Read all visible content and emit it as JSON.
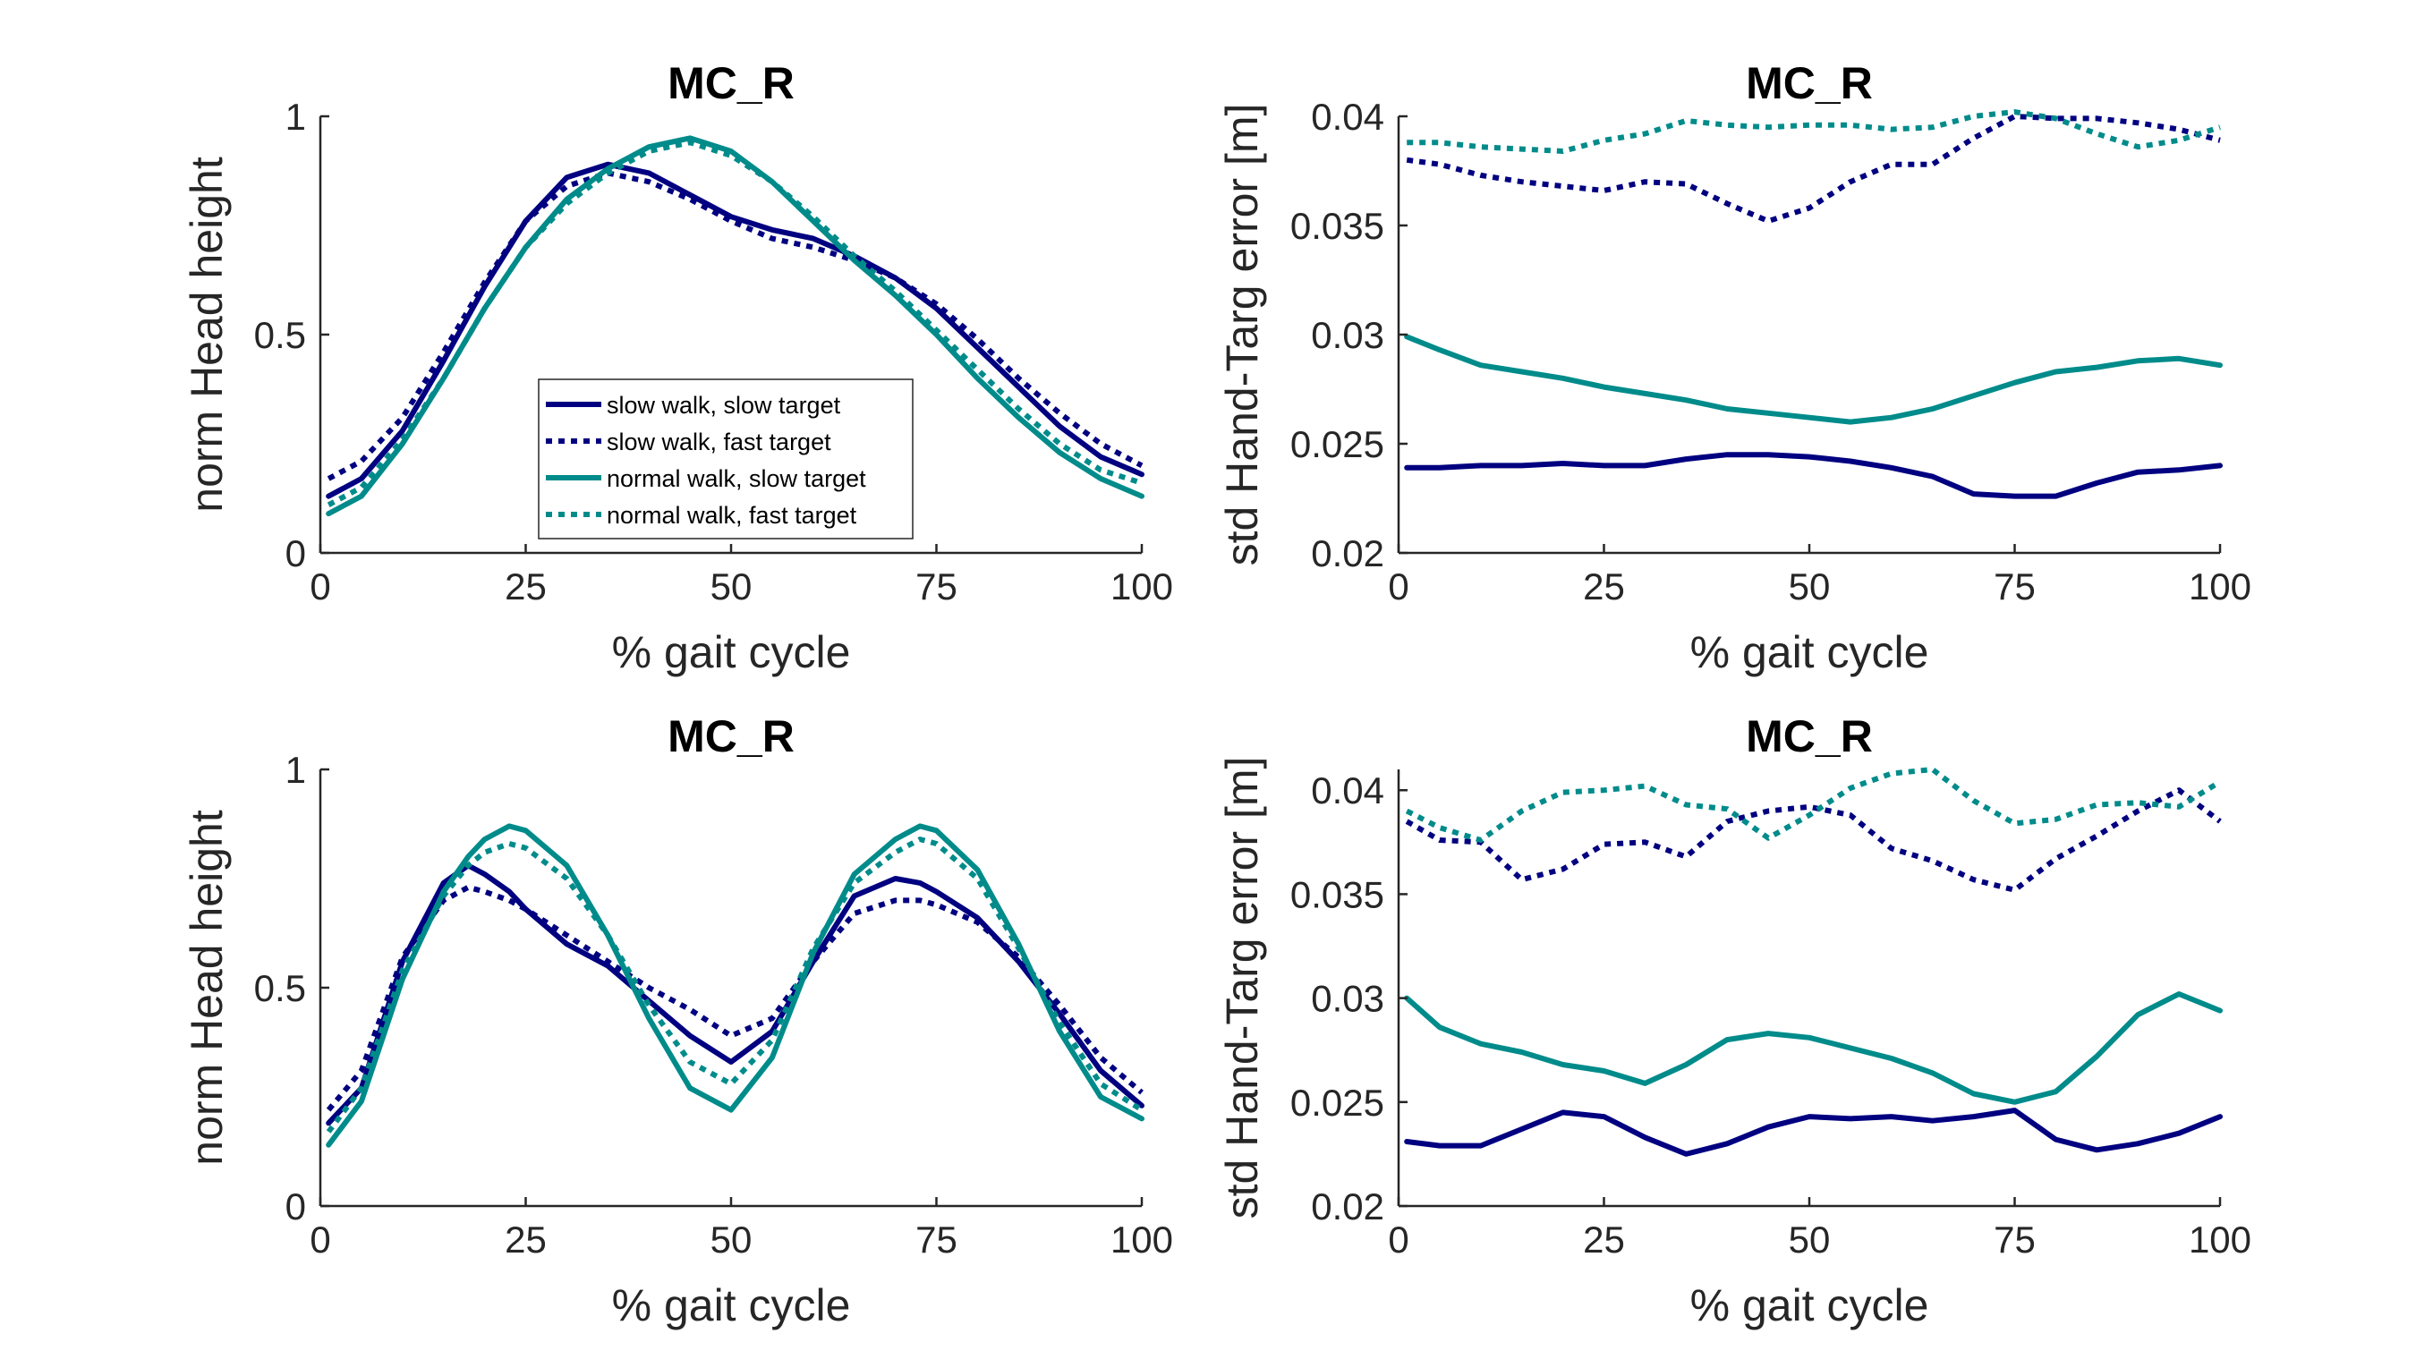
{
  "colors": {
    "slow": "#000080",
    "normal": "#008B8B"
  },
  "chart_data": [
    {
      "type": "line",
      "title": "MC_R",
      "xlabel": "% gait cycle",
      "ylabel": "norm Head height",
      "xlim": [
        0,
        100
      ],
      "ylim": [
        0,
        1
      ],
      "xticks": [
        0,
        25,
        50,
        75,
        100
      ],
      "xtick_labels": [
        "0",
        "25",
        "50",
        "75",
        "100"
      ],
      "yticks": [
        0,
        0.5,
        1
      ],
      "ytick_labels": [
        "0",
        "0.5",
        "1"
      ],
      "legend": {
        "placement": "lower-center",
        "entries": [
          "slow walk, slow target",
          "slow walk, fast target",
          "normal walk, slow target",
          "normal walk, fast target"
        ]
      },
      "x": [
        1,
        5,
        10,
        15,
        20,
        25,
        30,
        35,
        40,
        45,
        50,
        55,
        60,
        65,
        70,
        75,
        80,
        85,
        90,
        95,
        100
      ],
      "series": [
        {
          "name": "slow walk, slow target",
          "color": "slow",
          "dash": "solid",
          "values": [
            0.13,
            0.17,
            0.28,
            0.44,
            0.61,
            0.76,
            0.86,
            0.89,
            0.87,
            0.82,
            0.77,
            0.74,
            0.72,
            0.68,
            0.63,
            0.56,
            0.47,
            0.38,
            0.29,
            0.22,
            0.18
          ]
        },
        {
          "name": "slow walk, fast target",
          "color": "slow",
          "dash": "dot",
          "values": [
            0.17,
            0.21,
            0.31,
            0.46,
            0.62,
            0.76,
            0.84,
            0.87,
            0.85,
            0.81,
            0.76,
            0.72,
            0.7,
            0.67,
            0.63,
            0.57,
            0.49,
            0.4,
            0.32,
            0.25,
            0.2
          ]
        },
        {
          "name": "normal walk, slow target",
          "color": "normal",
          "dash": "solid",
          "values": [
            0.09,
            0.13,
            0.25,
            0.4,
            0.56,
            0.7,
            0.81,
            0.88,
            0.93,
            0.95,
            0.92,
            0.85,
            0.76,
            0.67,
            0.59,
            0.5,
            0.4,
            0.31,
            0.23,
            0.17,
            0.13
          ]
        },
        {
          "name": "normal walk, fast target",
          "color": "normal",
          "dash": "dot",
          "values": [
            0.11,
            0.15,
            0.26,
            0.4,
            0.56,
            0.7,
            0.8,
            0.87,
            0.92,
            0.94,
            0.91,
            0.85,
            0.77,
            0.68,
            0.6,
            0.51,
            0.42,
            0.33,
            0.25,
            0.19,
            0.16
          ]
        }
      ]
    },
    {
      "type": "line",
      "title": "MC_R",
      "xlabel": "% gait cycle",
      "ylabel": "std Hand-Targ error [m]",
      "xlim": [
        0,
        100
      ],
      "ylim": [
        0.02,
        0.04
      ],
      "xticks": [
        0,
        25,
        50,
        75,
        100
      ],
      "xtick_labels": [
        "0",
        "25",
        "50",
        "75",
        "100"
      ],
      "yticks": [
        0.02,
        0.025,
        0.03,
        0.035,
        0.04
      ],
      "ytick_labels": [
        "0.02",
        "0.025",
        "0.03",
        "0.035",
        "0.04"
      ],
      "x": [
        1,
        5,
        10,
        15,
        20,
        25,
        30,
        35,
        40,
        45,
        50,
        55,
        60,
        65,
        70,
        75,
        80,
        85,
        90,
        95,
        100
      ],
      "series": [
        {
          "name": "slow walk, slow target",
          "color": "slow",
          "dash": "solid",
          "values": [
            0.0239,
            0.0239,
            0.024,
            0.024,
            0.0241,
            0.024,
            0.024,
            0.0243,
            0.0245,
            0.0245,
            0.0244,
            0.0242,
            0.0239,
            0.0235,
            0.0227,
            0.0226,
            0.0226,
            0.0232,
            0.0237,
            0.0238,
            0.024
          ]
        },
        {
          "name": "slow walk, fast target",
          "color": "slow",
          "dash": "dot",
          "values": [
            0.038,
            0.0378,
            0.0373,
            0.037,
            0.0368,
            0.0366,
            0.037,
            0.0369,
            0.036,
            0.0352,
            0.0358,
            0.037,
            0.0378,
            0.0378,
            0.039,
            0.04,
            0.0399,
            0.0399,
            0.0397,
            0.0394,
            0.0389
          ]
        },
        {
          "name": "normal walk, slow target",
          "color": "normal",
          "dash": "solid",
          "values": [
            0.0299,
            0.0293,
            0.0286,
            0.0283,
            0.028,
            0.0276,
            0.0273,
            0.027,
            0.0266,
            0.0264,
            0.0262,
            0.026,
            0.0262,
            0.0266,
            0.0272,
            0.0278,
            0.0283,
            0.0285,
            0.0288,
            0.0289,
            0.0286
          ]
        },
        {
          "name": "normal walk, fast target",
          "color": "normal",
          "dash": "dot",
          "values": [
            0.0388,
            0.0388,
            0.0386,
            0.0385,
            0.0384,
            0.0389,
            0.0392,
            0.0398,
            0.0396,
            0.0395,
            0.0396,
            0.0396,
            0.0394,
            0.0395,
            0.04,
            0.0402,
            0.0399,
            0.0392,
            0.0386,
            0.0389,
            0.0395
          ]
        }
      ]
    },
    {
      "type": "line",
      "title": "MC_R",
      "xlabel": "% gait cycle",
      "ylabel": "norm Head height",
      "xlim": [
        0,
        100
      ],
      "ylim": [
        0,
        1
      ],
      "xticks": [
        0,
        25,
        50,
        75,
        100
      ],
      "xtick_labels": [
        "0",
        "25",
        "50",
        "75",
        "100"
      ],
      "yticks": [
        0,
        0.5,
        1
      ],
      "ytick_labels": [
        "0",
        "0.5",
        "1"
      ],
      "x": [
        1,
        5,
        10,
        15,
        18,
        20,
        23,
        25,
        30,
        35,
        40,
        45,
        50,
        55,
        60,
        65,
        70,
        73,
        75,
        80,
        85,
        90,
        95,
        100
      ],
      "series": [
        {
          "name": "slow walk, slow target",
          "color": "slow",
          "dash": "solid",
          "values": [
            0.19,
            0.27,
            0.56,
            0.74,
            0.78,
            0.76,
            0.72,
            0.68,
            0.6,
            0.55,
            0.47,
            0.39,
            0.33,
            0.4,
            0.56,
            0.71,
            0.75,
            0.74,
            0.72,
            0.66,
            0.56,
            0.44,
            0.31,
            0.23
          ]
        },
        {
          "name": "slow walk, fast target",
          "color": "slow",
          "dash": "dot",
          "values": [
            0.22,
            0.31,
            0.57,
            0.7,
            0.73,
            0.72,
            0.7,
            0.68,
            0.62,
            0.56,
            0.5,
            0.45,
            0.39,
            0.43,
            0.56,
            0.67,
            0.7,
            0.7,
            0.69,
            0.65,
            0.57,
            0.46,
            0.34,
            0.26
          ]
        },
        {
          "name": "normal walk, slow target",
          "color": "normal",
          "dash": "solid",
          "values": [
            0.14,
            0.24,
            0.52,
            0.72,
            0.8,
            0.84,
            0.87,
            0.86,
            0.78,
            0.62,
            0.43,
            0.27,
            0.22,
            0.34,
            0.58,
            0.76,
            0.84,
            0.87,
            0.86,
            0.77,
            0.6,
            0.4,
            0.25,
            0.2
          ]
        },
        {
          "name": "normal walk, fast target",
          "color": "normal",
          "dash": "dot",
          "values": [
            0.17,
            0.27,
            0.54,
            0.71,
            0.78,
            0.81,
            0.83,
            0.82,
            0.75,
            0.62,
            0.46,
            0.33,
            0.28,
            0.38,
            0.59,
            0.74,
            0.81,
            0.84,
            0.83,
            0.75,
            0.59,
            0.42,
            0.28,
            0.22
          ]
        }
      ]
    },
    {
      "type": "line",
      "title": "MC_R",
      "xlabel": "% gait cycle",
      "ylabel": "std Hand-Targ error [m]",
      "xlim": [
        0,
        100
      ],
      "ylim": [
        0.02,
        0.041
      ],
      "xticks": [
        0,
        25,
        50,
        75,
        100
      ],
      "xtick_labels": [
        "0",
        "25",
        "50",
        "75",
        "100"
      ],
      "yticks": [
        0.02,
        0.025,
        0.03,
        0.035,
        0.04
      ],
      "ytick_labels": [
        "0.02",
        "0.025",
        "0.03",
        "0.035",
        "0.04"
      ],
      "x": [
        1,
        5,
        10,
        15,
        20,
        25,
        30,
        35,
        40,
        45,
        50,
        55,
        60,
        65,
        70,
        75,
        80,
        85,
        90,
        95,
        100
      ],
      "series": [
        {
          "name": "slow walk, slow target",
          "color": "slow",
          "dash": "solid",
          "values": [
            0.0231,
            0.0229,
            0.0229,
            0.0237,
            0.0245,
            0.0243,
            0.0233,
            0.0225,
            0.023,
            0.0238,
            0.0243,
            0.0242,
            0.0243,
            0.0241,
            0.0243,
            0.0246,
            0.0232,
            0.0227,
            0.023,
            0.0235,
            0.0243
          ]
        },
        {
          "name": "slow walk, fast target",
          "color": "slow",
          "dash": "dot",
          "values": [
            0.0385,
            0.0376,
            0.0375,
            0.0357,
            0.0362,
            0.0374,
            0.0375,
            0.0368,
            0.0385,
            0.039,
            0.0392,
            0.0388,
            0.0372,
            0.0366,
            0.0357,
            0.0352,
            0.0367,
            0.0378,
            0.039,
            0.04,
            0.0385
          ]
        },
        {
          "name": "normal walk, slow target",
          "color": "normal",
          "dash": "solid",
          "values": [
            0.03,
            0.0286,
            0.0278,
            0.0274,
            0.0268,
            0.0265,
            0.0259,
            0.0268,
            0.028,
            0.0283,
            0.0281,
            0.0276,
            0.0271,
            0.0264,
            0.0254,
            0.025,
            0.0255,
            0.0272,
            0.0292,
            0.0302,
            0.0294
          ]
        },
        {
          "name": "normal walk, fast target",
          "color": "normal",
          "dash": "dot",
          "values": [
            0.039,
            0.0382,
            0.0376,
            0.039,
            0.0399,
            0.04,
            0.0402,
            0.0393,
            0.0391,
            0.0377,
            0.0388,
            0.0401,
            0.0408,
            0.041,
            0.0395,
            0.0384,
            0.0386,
            0.0393,
            0.0394,
            0.0392,
            0.0404
          ]
        }
      ]
    }
  ]
}
